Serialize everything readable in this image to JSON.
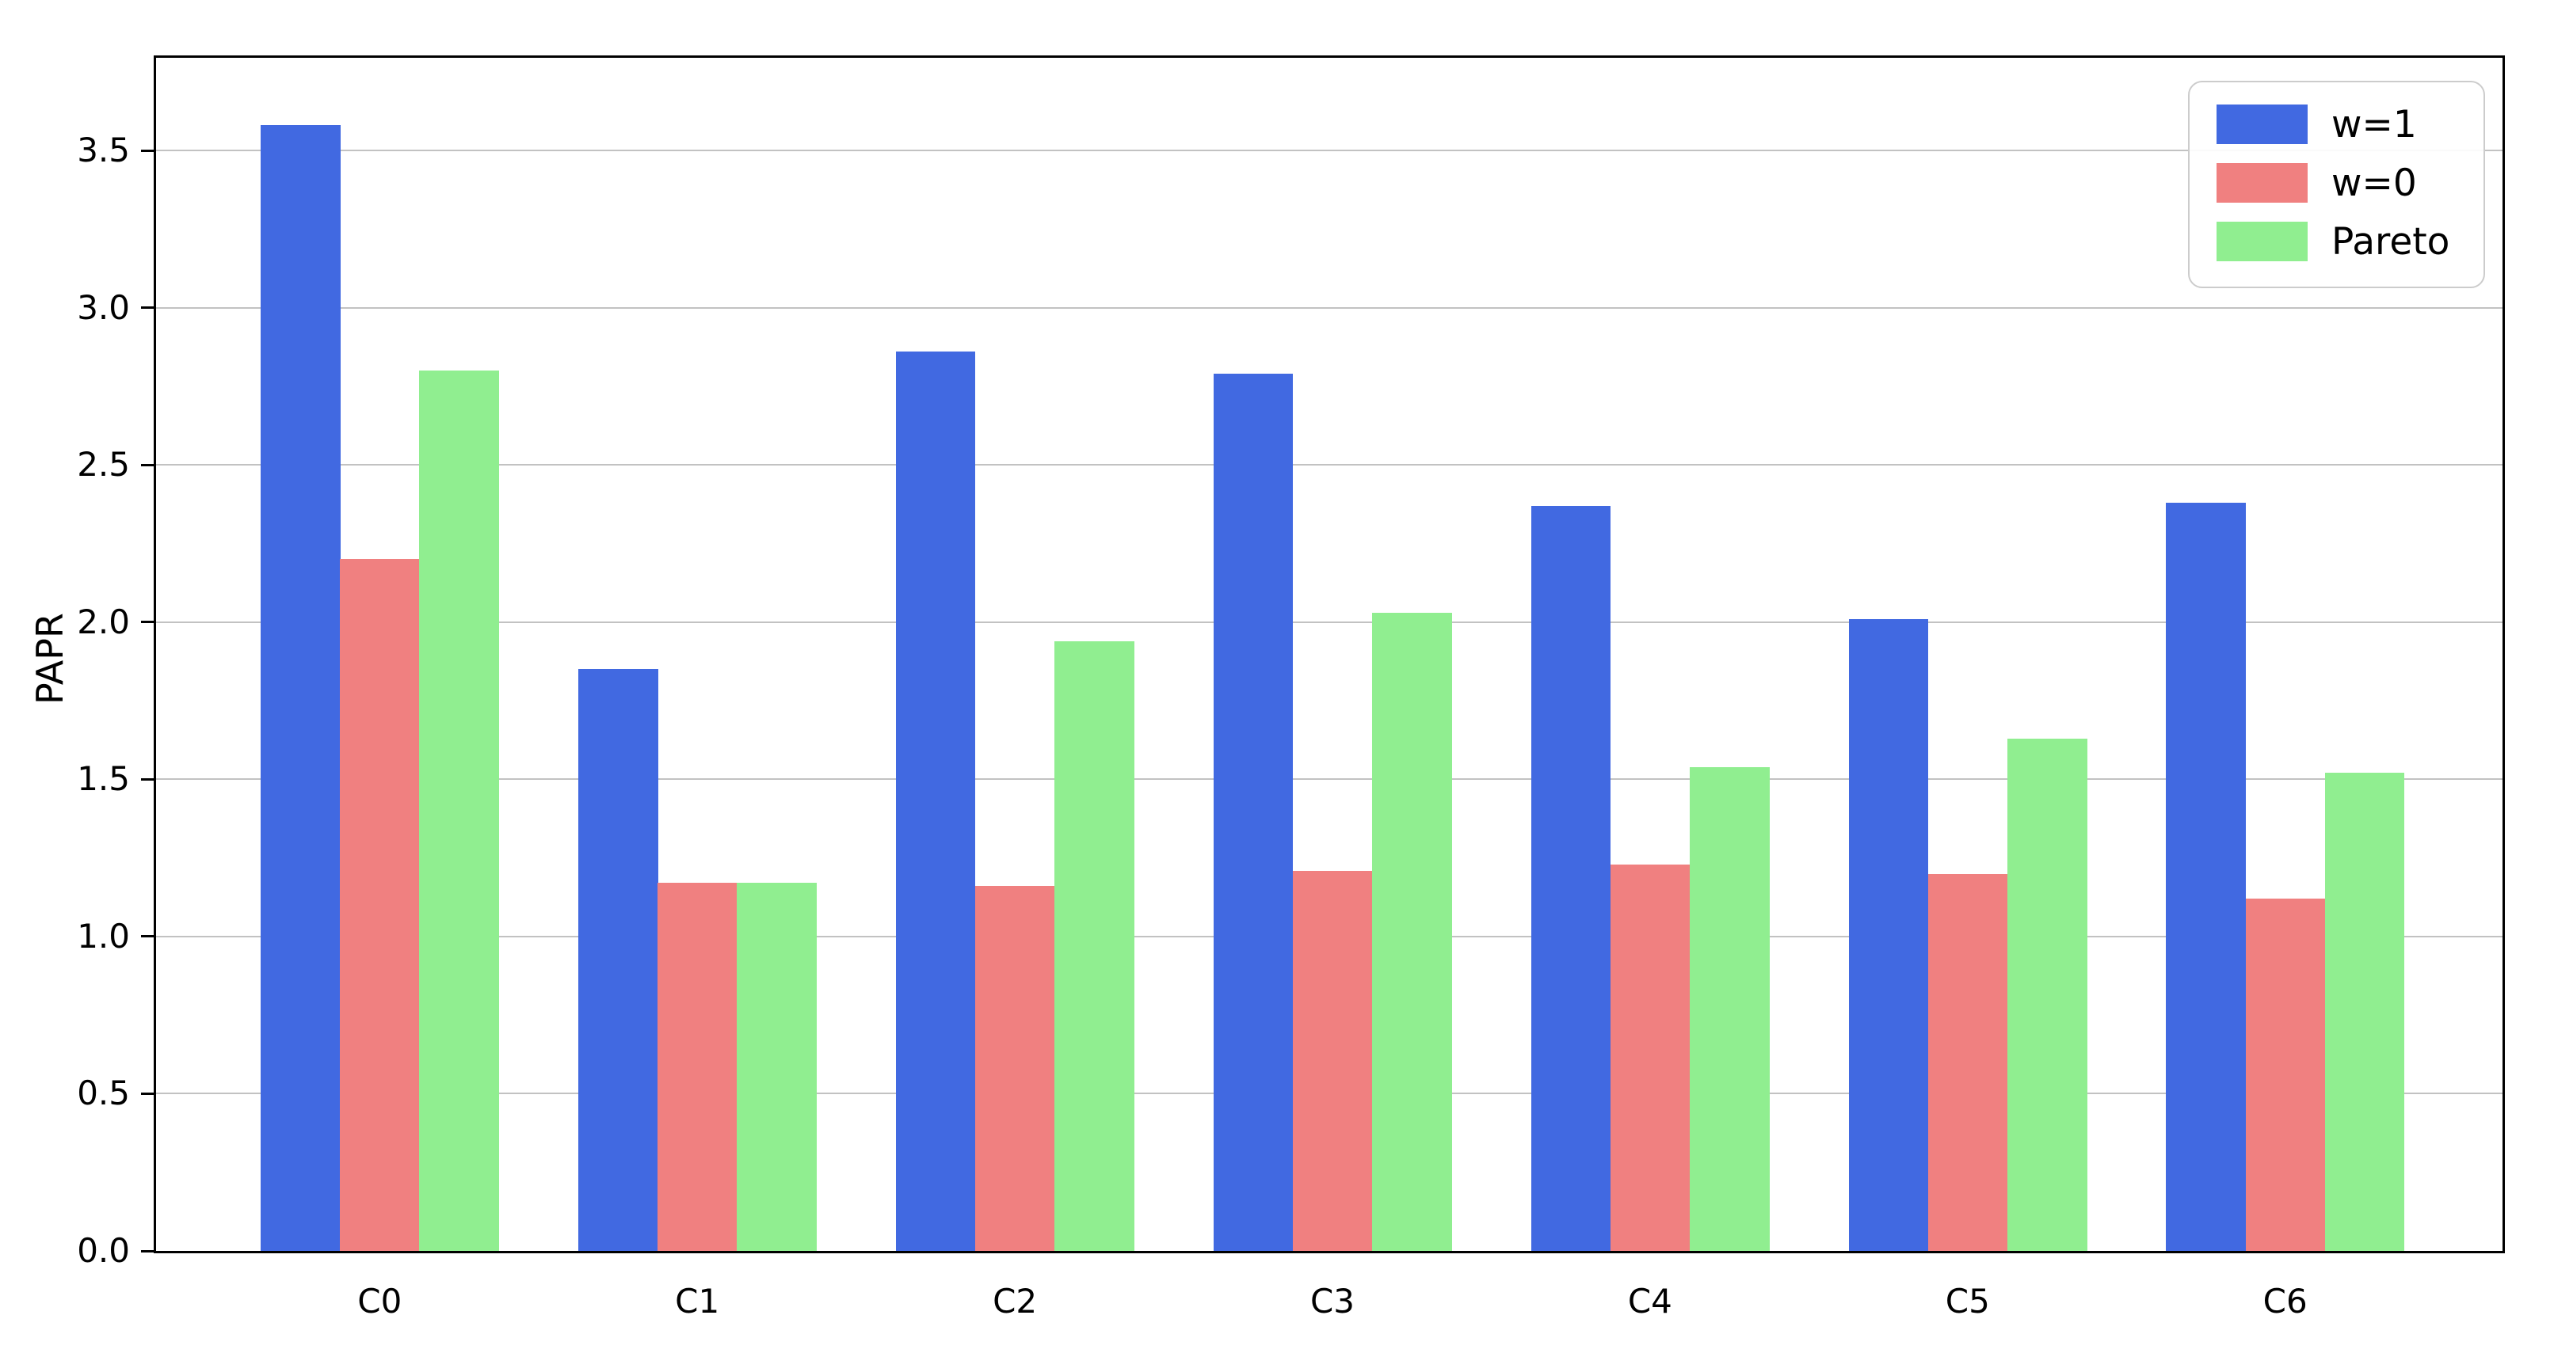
{
  "figure": {
    "background_color": "#ffffff",
    "grid_color": "#c2c2c2",
    "spine_color": "#000000",
    "legend_border_color": "#cccccc"
  },
  "chart_data": {
    "type": "bar",
    "title": "",
    "xlabel": "",
    "ylabel": "PAPR",
    "categories": [
      "C0",
      "C1",
      "C2",
      "C3",
      "C4",
      "C5",
      "C6"
    ],
    "series": [
      {
        "name": "w=1",
        "color": "#4169E1",
        "values": [
          3.58,
          1.85,
          2.86,
          2.79,
          2.37,
          2.01,
          2.38
        ]
      },
      {
        "name": "w=0",
        "color": "#F08080",
        "values": [
          2.2,
          1.17,
          1.16,
          1.21,
          1.23,
          1.2,
          1.12
        ]
      },
      {
        "name": "Pareto",
        "color": "#90EE90",
        "values": [
          2.8,
          1.17,
          1.94,
          2.03,
          1.54,
          1.63,
          1.52
        ]
      }
    ],
    "yticks": [
      "0.0",
      "0.5",
      "1.0",
      "1.5",
      "2.0",
      "2.5",
      "3.0",
      "3.5"
    ],
    "ytick_values": [
      0.0,
      0.5,
      1.0,
      1.5,
      2.0,
      2.5,
      3.0,
      3.5
    ],
    "ylim": [
      0,
      3.795
    ],
    "grid": "horizontal",
    "legend_position": "upper right",
    "bar_width_ratio": 0.25
  }
}
